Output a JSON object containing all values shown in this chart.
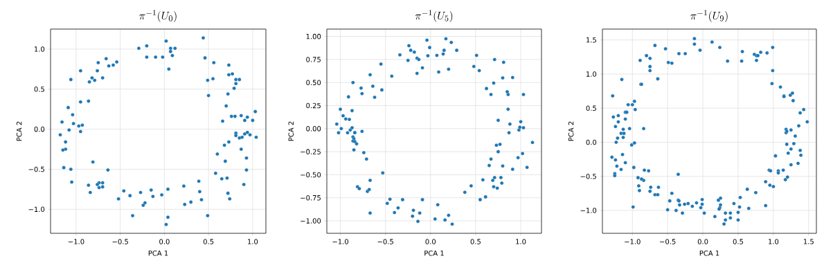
{
  "chart_data": [
    {
      "type": "scatter",
      "title": "\\pi^{-1}(U_0)",
      "xlabel": "PCA 1",
      "ylabel": "PCA 2",
      "color": "#1f77b4",
      "marker": "circle",
      "grid": true,
      "xlim": [
        -1.29,
        1.15
      ],
      "ylim": [
        -1.3,
        1.25
      ],
      "xticks": [
        {
          "value": -1.0,
          "label": "−1.0"
        },
        {
          "value": -0.5,
          "label": "−0.5"
        },
        {
          "value": 0.0,
          "label": "0.0"
        },
        {
          "value": 0.5,
          "label": "0.5"
        },
        {
          "value": 1.0,
          "label": "1.0"
        }
      ],
      "yticks": [
        {
          "value": -1.0,
          "label": "−1.0"
        },
        {
          "value": -0.5,
          "label": "−0.5"
        },
        {
          "value": 0.0,
          "label": "0.0"
        },
        {
          "value": 0.5,
          "label": "0.5"
        },
        {
          "value": 1.0,
          "label": "1.0"
        }
      ],
      "x": [
        0.02,
        0.44,
        -0.29,
        -0.2,
        -0.2,
        -0.1,
        -0.02,
        0.07,
        0.12,
        0.07,
        0.09,
        0.05,
        0.46,
        0.56,
        0.49,
        0.55,
        0.5,
        0.73,
        0.73,
        0.77,
        0.81,
        0.85,
        0.81,
        0.79,
        0.72,
        0.7,
        0.76,
        0.8,
        0.87,
        0.94,
        0.91,
        1.0,
        1.03,
        0.66,
        0.81,
        0.81,
        0.85,
        0.88,
        0.91,
        0.94,
        0.97,
        1.04,
        0.73,
        0.68,
        0.87,
        0.93,
        0.93,
        0.6,
        0.69,
        0.58,
        0.65,
        0.71,
        0.9,
        0.72,
        0.74,
        0.39,
        0.4,
        0.42,
        0.49,
        0.22,
        0.23,
        0.3,
        0.04,
        0.04,
        0.02,
        -0.03,
        -0.15,
        -0.13,
        -0.22,
        -0.24,
        -0.27,
        -0.39,
        -0.36,
        -0.46,
        -0.52,
        -0.64,
        -0.7,
        -0.7,
        -0.74,
        -0.74,
        -0.76,
        -0.81,
        -0.86,
        -0.84,
        -1.05,
        -1.06,
        -1.14,
        -1.12,
        -1.15,
        -1.12,
        -1.18,
        -1.08,
        -1.16,
        -1.03,
        -1.04,
        -1.09,
        -0.97,
        -0.93,
        -0.95,
        -0.95,
        -0.86,
        -1.06,
        -0.95,
        -0.85,
        -0.82,
        -0.79,
        -0.76,
        -0.75,
        -0.7,
        -0.66,
        -0.63,
        -0.58,
        -0.54
      ],
      "values": [
        1.1,
        1.14,
        1.01,
        1.04,
        0.9,
        0.9,
        0.9,
        1.01,
        1.01,
        0.97,
        0.92,
        0.75,
        0.89,
        0.83,
        0.61,
        0.63,
        0.42,
        0.8,
        0.68,
        0.69,
        0.62,
        0.62,
        0.57,
        0.51,
        0.44,
        0.29,
        0.16,
        0.16,
        0.17,
        0.15,
        0.11,
        0.11,
        0.22,
        0.1,
        -0.05,
        -0.08,
        -0.11,
        -0.1,
        -0.06,
        -0.04,
        -0.07,
        -0.1,
        -0.16,
        -0.2,
        -0.25,
        -0.36,
        -0.51,
        -0.31,
        -0.4,
        -0.55,
        -0.62,
        -0.61,
        -0.69,
        -0.8,
        -0.87,
        -0.65,
        -0.78,
        -0.88,
        -1.08,
        -0.71,
        -0.94,
        -0.91,
        -0.75,
        -1.1,
        -1.19,
        -0.82,
        -0.76,
        -0.84,
        -0.92,
        -0.95,
        -0.79,
        -0.83,
        -1.08,
        -0.77,
        -0.87,
        -0.51,
        -0.67,
        -0.72,
        -0.67,
        -0.73,
        -0.69,
        -0.41,
        -0.7,
        -0.79,
        -0.66,
        -0.5,
        -0.48,
        -0.25,
        -0.26,
        -0.16,
        -0.07,
        -0.01,
        0.09,
        0.07,
        0.18,
        0.27,
        0.04,
        0.05,
        -0.03,
        0.34,
        0.35,
        0.62,
        0.73,
        0.59,
        0.64,
        0.61,
        0.73,
        0.83,
        0.64,
        0.88,
        0.79,
        0.8,
        0.84
      ]
    },
    {
      "type": "scatter",
      "title": "\\pi^{-1}(U_5)",
      "xlabel": "PCA 1",
      "ylabel": "PCA 2",
      "color": "#1f77b4",
      "marker": "circle",
      "grid": true,
      "xlim": [
        -1.15,
        1.23
      ],
      "ylim": [
        -1.135,
        1.08
      ],
      "xticks": [
        {
          "value": -1.0,
          "label": "−1.0"
        },
        {
          "value": -0.5,
          "label": "−0.5"
        },
        {
          "value": 0.0,
          "label": "0.0"
        },
        {
          "value": 0.5,
          "label": "0.5"
        },
        {
          "value": 1.0,
          "label": "1.0"
        }
      ],
      "yticks": [
        {
          "value": -1.0,
          "label": "−1.00"
        },
        {
          "value": -0.75,
          "label": "−0.75"
        },
        {
          "value": -0.5,
          "label": "−0.50"
        },
        {
          "value": -0.25,
          "label": "−0.25"
        },
        {
          "value": 0.0,
          "label": "0.00"
        },
        {
          "value": 0.25,
          "label": "0.25"
        },
        {
          "value": 0.5,
          "label": "0.50"
        },
        {
          "value": 0.75,
          "label": "0.75"
        },
        {
          "value": 1.0,
          "label": "1.00"
        }
      ],
      "x": [
        -0.04,
        0.17,
        0.23,
        0.29,
        0.15,
        0.14,
        -0.01,
        -0.03,
        0.07,
        0.09,
        0.2,
        -0.24,
        -0.22,
        -0.18,
        -0.15,
        -0.13,
        -0.25,
        -0.09,
        -0.15,
        -0.34,
        -0.55,
        -0.43,
        -0.67,
        -0.64,
        -0.54,
        -0.62,
        -0.86,
        -0.77,
        -0.76,
        -0.91,
        -1.0,
        -0.87,
        -0.97,
        -0.94,
        -0.9,
        -1.04,
        -1.02,
        -0.99,
        -0.92,
        -0.89,
        -0.87,
        -0.84,
        -0.84,
        -0.86,
        -0.85,
        -0.86,
        -0.84,
        -0.82,
        -0.76,
        -0.85,
        -0.74,
        -0.71,
        -0.53,
        -0.67,
        -0.81,
        -0.79,
        -0.7,
        -0.68,
        -0.67,
        -0.48,
        -0.45,
        -0.4,
        -0.36,
        -0.31,
        -0.19,
        -0.2,
        -0.12,
        -0.14,
        -0.09,
        0.05,
        0.08,
        0.16,
        0.2,
        0.24,
        0.38,
        0.45,
        0.55,
        0.61,
        0.58,
        0.69,
        0.71,
        0.7,
        0.74,
        0.78,
        0.79,
        0.65,
        0.67,
        0.8,
        0.91,
        0.75,
        0.73,
        0.77,
        0.97,
        1.02,
        1.07,
        1.13,
        0.87,
        0.88,
        0.75,
        0.98,
        0.99,
        1.0,
        1.03,
        0.86,
        0.86,
        0.85,
        1.03,
        0.67,
        0.62,
        0.7,
        0.8,
        0.91,
        0.71,
        0.81,
        0.48,
        0.54,
        0.51
      ],
      "values": [
        0.96,
        0.975,
        0.935,
        0.85,
        0.85,
        0.81,
        0.88,
        0.79,
        0.795,
        0.615,
        0.645,
        0.9,
        0.85,
        0.83,
        0.765,
        0.75,
        0.74,
        0.66,
        0.6,
        0.8,
        0.7,
        0.57,
        0.585,
        0.46,
        0.42,
        0.34,
        0.5,
        0.44,
        0.38,
        0.345,
        0.21,
        0.195,
        0.14,
        0.105,
        0.1,
        0.05,
        -0.045,
        0.0,
        -0.045,
        -0.015,
        0.01,
        -0.04,
        -0.045,
        -0.09,
        -0.11,
        -0.135,
        -0.14,
        -0.165,
        -0.03,
        -0.23,
        -0.26,
        -0.33,
        -0.48,
        -0.56,
        -0.63,
        -0.65,
        -0.68,
        -0.66,
        -0.915,
        -0.81,
        -0.765,
        -0.91,
        -0.86,
        -0.77,
        -0.885,
        -0.95,
        -0.915,
        -1.005,
        -0.77,
        -0.98,
        -0.825,
        -0.99,
        -0.94,
        -1.035,
        -0.69,
        -0.62,
        -0.77,
        -0.74,
        -0.555,
        -0.56,
        -0.53,
        -0.63,
        -0.645,
        -0.53,
        -0.59,
        -0.4,
        -0.33,
        -0.405,
        -0.44,
        -0.25,
        -0.18,
        -0.17,
        -0.315,
        -0.27,
        -0.42,
        -0.15,
        -0.045,
        0.05,
        0.09,
        -0.015,
        0.015,
        0.075,
        0.01,
        0.21,
        0.37,
        0.4,
        0.37,
        0.37,
        0.435,
        0.495,
        0.55,
        0.555,
        0.75,
        0.72,
        0.675,
        0.63,
        0.795
      ]
    },
    {
      "type": "scatter",
      "title": "\\pi^{-1}(U_9)",
      "xlabel": "PCA 1",
      "ylabel": "PCA 2",
      "color": "#1f77b4",
      "marker": "circle",
      "grid": true,
      "xlim": [
        -1.425,
        1.61
      ],
      "ylim": [
        -1.336,
        1.66
      ],
      "xticks": [
        {
          "value": -1.0,
          "label": "−1.0"
        },
        {
          "value": -0.5,
          "label": "−0.5"
        },
        {
          "value": 0.0,
          "label": "0.0"
        },
        {
          "value": 0.5,
          "label": "0.5"
        },
        {
          "value": 1.0,
          "label": "1.0"
        },
        {
          "value": 1.5,
          "label": "1.5"
        }
      ],
      "yticks": [
        {
          "value": -1.0,
          "label": "−1.0"
        },
        {
          "value": -0.5,
          "label": "−0.5"
        },
        {
          "value": 0.0,
          "label": "0.0"
        },
        {
          "value": 0.5,
          "label": "0.5"
        },
        {
          "value": 1.0,
          "label": "1.0"
        },
        {
          "value": 1.5,
          "label": "1.5"
        }
      ],
      "x": [
        -0.12,
        -0.12,
        -0.04,
        0.13,
        0.24,
        0.35,
        0.56,
        0.55,
        0.73,
        0.76,
        0.78,
        0.82,
        0.76,
        0.91,
        0.99,
        0.99,
        0.98,
        1.1,
        1.15,
        1.15,
        1.24,
        1.27,
        1.28,
        1.38,
        1.43,
        1.48,
        1.36,
        1.31,
        1.25,
        1.18,
        1.18,
        1.19,
        1.19,
        1.29,
        1.25,
        1.21,
        1.38,
        1.39,
        1.03,
        1.25,
        1.35,
        0.94,
        0.96,
        1.07,
        1.07,
        1.14,
        1.2,
        1.17,
        0.89,
        0.95,
        1.0,
        0.75,
        0.63,
        0.89,
        0.53,
        0.52,
        0.65,
        0.5,
        0.5,
        0.44,
        0.39,
        0.39,
        0.32,
        0.32,
        0.3,
        0.17,
        0.25,
        0.22,
        0.25,
        0.24,
        0.23,
        0.02,
        -0.01,
        -0.01,
        -0.03,
        -0.09,
        -0.15,
        -0.21,
        -0.26,
        -0.29,
        -0.33,
        -0.35,
        -0.34,
        -0.38,
        -0.47,
        -0.44,
        -0.5,
        -0.35,
        -0.63,
        -0.74,
        -0.75,
        -0.68,
        -0.64,
        -0.84,
        -0.87,
        -0.92,
        -0.91,
        -0.9,
        -0.99,
        -0.83,
        -0.77,
        -0.98,
        -1.1,
        -1.14,
        -1.16,
        -1.22,
        -1.25,
        -1.25,
        -1.29,
        -1.24,
        -1.23,
        -1.01,
        -0.97,
        -1.13,
        -1.21,
        -1.16,
        -1.12,
        -1.13,
        -1.24,
        -1.2,
        -1.04,
        -0.84,
        -1.1,
        -1.27,
        -1.2,
        -1.1,
        -1.08,
        -1.06,
        -1.0,
        -0.97,
        -0.96,
        -1.28,
        -1.15,
        -0.88,
        -0.87,
        -0.64,
        -0.75,
        -0.75,
        -0.75,
        -0.8,
        -0.89,
        -0.68,
        -0.53,
        -0.49,
        -0.44,
        -0.34,
        -0.25
      ],
      "values": [
        1.52,
        1.44,
        1.35,
        1.47,
        1.39,
        1.19,
        1.33,
        1.19,
        1.29,
        1.27,
        1.27,
        1.32,
        1.2,
        1.31,
        1.39,
        1.05,
        0.86,
        0.81,
        0.68,
        0.67,
        0.69,
        0.72,
        0.61,
        0.43,
        0.48,
        0.3,
        0.24,
        0.09,
        0.18,
        0.19,
        0.14,
        0.16,
        -0.03,
        -0.02,
        -0.1,
        -0.16,
        -0.12,
        -0.19,
        -0.2,
        -0.33,
        -0.31,
        -0.41,
        -0.42,
        -0.42,
        -0.45,
        -0.41,
        -0.51,
        -0.55,
        -0.58,
        -0.63,
        -0.65,
        -0.74,
        -0.69,
        -0.93,
        -0.81,
        -0.95,
        -0.97,
        -1.03,
        -1.14,
        -0.9,
        -1.04,
        -1.11,
        -1.04,
        -1.14,
        -1.2,
        -1.09,
        -0.82,
        -0.85,
        -0.92,
        -0.96,
        -0.98,
        -1.04,
        -0.84,
        -0.91,
        -0.96,
        -0.89,
        -0.94,
        -0.9,
        -0.91,
        -1.04,
        -0.92,
        -0.85,
        -0.86,
        -1.0,
        -0.86,
        -0.75,
        -0.99,
        -0.47,
        -0.66,
        -0.66,
        -0.72,
        -0.77,
        -0.77,
        -0.56,
        -0.54,
        -0.52,
        -0.64,
        -0.71,
        -0.95,
        -0.41,
        -0.42,
        -0.37,
        -0.3,
        -0.18,
        -0.4,
        -0.35,
        -0.46,
        -0.49,
        -0.22,
        -0.26,
        0.0,
        -0.04,
        -0.01,
        0.07,
        0.06,
        0.13,
        0.13,
        0.19,
        0.23,
        0.3,
        0.2,
        0.2,
        0.34,
        0.37,
        0.39,
        0.44,
        0.44,
        0.55,
        0.55,
        0.6,
        0.48,
        0.68,
        0.92,
        0.85,
        0.85,
        0.93,
        1.05,
        1.11,
        1.23,
        1.27,
        1.2,
        1.42,
        1.37,
        1.17,
        1.16,
        1.3,
        1.3
      ]
    }
  ]
}
